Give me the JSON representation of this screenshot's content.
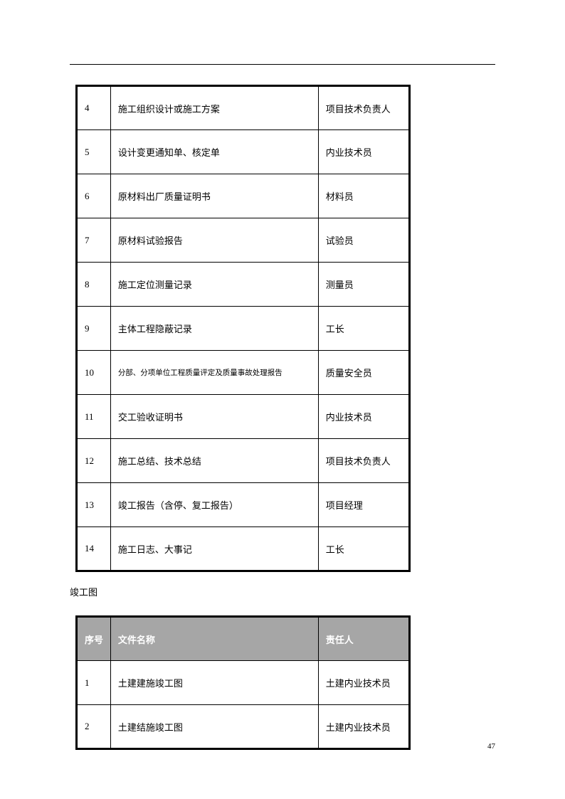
{
  "table1": {
    "rows": [
      {
        "num": "4",
        "name": "施工组织设计或施工方案",
        "person": "项目技术负责人",
        "small": false
      },
      {
        "num": "5",
        "name": "设计变更通知单、核定单",
        "person": "内业技术员",
        "small": false
      },
      {
        "num": "6",
        "name": "原材料出厂质量证明书",
        "person": "材料员",
        "small": false
      },
      {
        "num": "7",
        "name": "原材料试验报告",
        "person": "试验员",
        "small": false
      },
      {
        "num": "8",
        "name": "施工定位测量记录",
        "person": "测量员",
        "small": false
      },
      {
        "num": "9",
        "name": "主体工程隐蔽记录",
        "person": "工长",
        "small": false
      },
      {
        "num": "10",
        "name": "分部、分项单位工程质量评定及质量事故处理报告",
        "person": "质量安全员",
        "small": true
      },
      {
        "num": "11",
        "name": "交工验收证明书",
        "person": "内业技术员",
        "small": false
      },
      {
        "num": "12",
        "name": "施工总结、技术总结",
        "person": "项目技术负责人",
        "small": false
      },
      {
        "num": "13",
        "name": "竣工报告（含停、复工报告）",
        "person": "项目经理",
        "small": false
      },
      {
        "num": "14",
        "name": "施工日志、大事记",
        "person": "工长",
        "small": false
      }
    ]
  },
  "sectionLabel": "竣工图",
  "table2": {
    "headers": {
      "num": "序号",
      "name": "文件名称",
      "person": "责任人"
    },
    "rows": [
      {
        "num": "1",
        "name": "土建建施竣工图",
        "person": "土建内业技术员"
      },
      {
        "num": "2",
        "name": "土建结施竣工图",
        "person": "土建内业技术员"
      }
    ]
  },
  "pageNumber": "47"
}
